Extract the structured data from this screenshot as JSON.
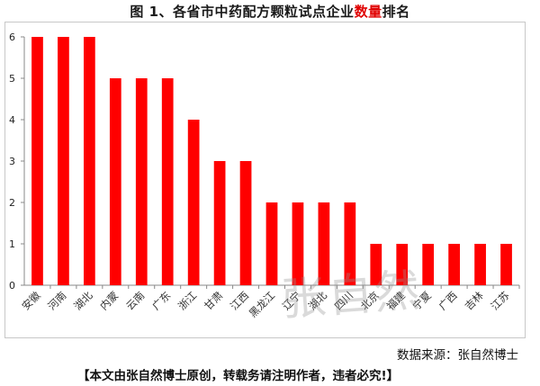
{
  "title": {
    "prefix": "图 1、各省市中药配方颗粒试点企业",
    "highlight": "数量",
    "suffix": "排名"
  },
  "chart_data": {
    "type": "bar",
    "categories": [
      "安徽",
      "河南",
      "湖北",
      "内蒙",
      "云南",
      "广东",
      "浙江",
      "甘肃",
      "江西",
      "黑龙江",
      "辽宁",
      "湖北",
      "四川",
      "北京",
      "福建",
      "宁夏",
      "广西",
      "吉林",
      "江苏"
    ],
    "values": [
      6,
      6,
      6,
      5,
      5,
      5,
      4,
      3,
      3,
      2,
      2,
      2,
      2,
      1,
      1,
      1,
      1,
      1,
      1
    ],
    "yticks": [
      "0",
      "1",
      "2",
      "3",
      "4",
      "5",
      "6"
    ],
    "ylim": [
      0,
      6
    ],
    "bar_color": "#ff0000",
    "grid": false,
    "legend": "none"
  },
  "source": "数据来源：张自然博士",
  "footer": "【本文由张自然博士原创，转载务请注明作者，违者必究!】",
  "watermark": "张自然"
}
